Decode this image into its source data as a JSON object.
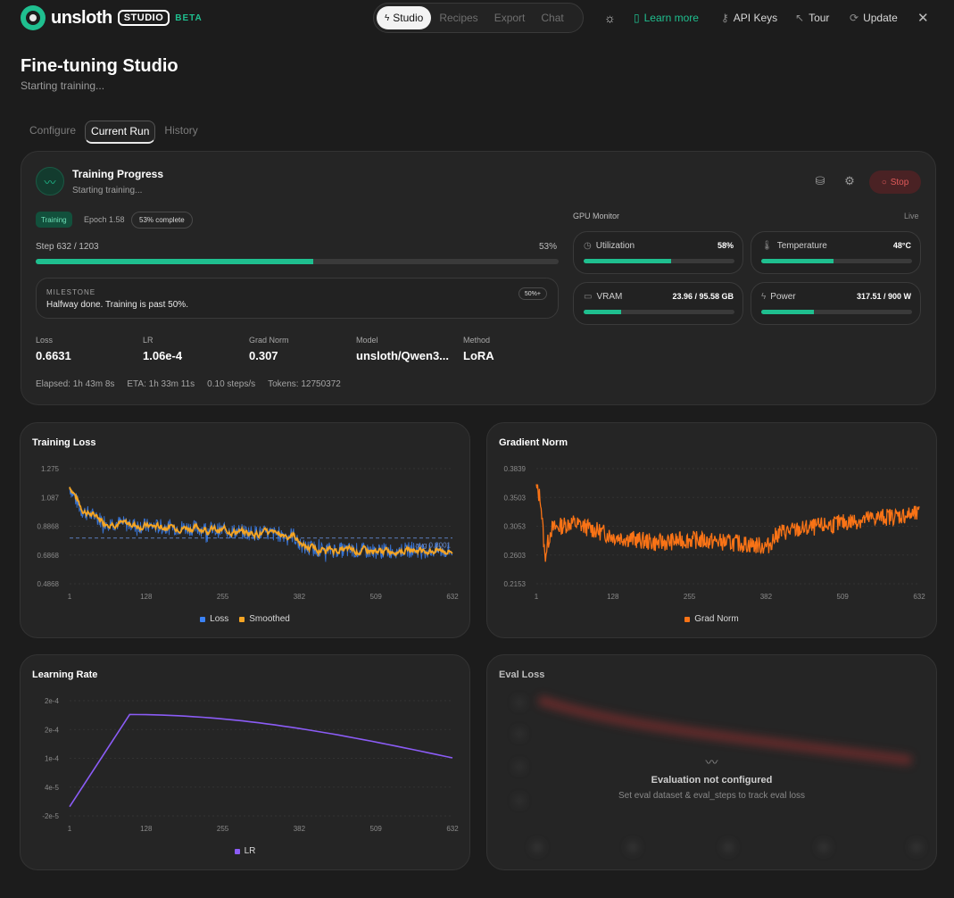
{
  "app": {
    "logo_text": "unsloth",
    "logo_badge": "STUDIO",
    "logo_beta": "BETA"
  },
  "nav": {
    "tabs": [
      {
        "label": "Studio",
        "active": true
      },
      {
        "label": "Recipes",
        "active": false
      },
      {
        "label": "Export",
        "active": false
      },
      {
        "label": "Chat",
        "active": false
      }
    ]
  },
  "toolbar": {
    "learn_more": "Learn more",
    "api_keys": "API Keys",
    "tour": "Tour",
    "update": "Update"
  },
  "page": {
    "title": "Fine-tuning Studio",
    "subtitle": "Starting training..."
  },
  "subtabs": [
    {
      "label": "Configure",
      "active": false
    },
    {
      "label": "Current Run",
      "active": true
    },
    {
      "label": "History",
      "active": false
    }
  ],
  "progress": {
    "title": "Training Progress",
    "subtitle": "Starting training...",
    "stop_label": "Stop",
    "status_badge": "Training",
    "epoch": "Epoch 1.58",
    "complete_badge": "53% complete",
    "step_label": "Step 632 / 1203",
    "step_pct_text": "53%",
    "step_fraction": 0.53,
    "milestone_label": "MILESTONE",
    "milestone_text": "Halfway done. Training is past 50%.",
    "milestone_badge": "50%+",
    "stats": [
      {
        "label": "Loss",
        "value": "0.6631"
      },
      {
        "label": "LR",
        "value": "1.06e-4"
      },
      {
        "label": "Grad Norm",
        "value": "0.307"
      },
      {
        "label": "Model",
        "value": "unsloth/Qwen3..."
      },
      {
        "label": "Method",
        "value": "LoRA"
      }
    ],
    "elapsed": "Elapsed: 1h 43m 8s",
    "eta": "ETA: 1h 33m 11s",
    "speed": "0.10 steps/s",
    "tokens": "Tokens: 12750372"
  },
  "gpu": {
    "title": "GPU Monitor",
    "live": "Live",
    "cards": [
      {
        "name": "Utilization",
        "icon": "gauge-icon",
        "value": "58%",
        "fraction": 0.58
      },
      {
        "name": "Temperature",
        "icon": "thermometer-icon",
        "value": "48°C",
        "fraction": 0.48
      },
      {
        "name": "VRAM",
        "icon": "memory-icon",
        "value": "23.96 / 95.58 GB",
        "fraction": 0.25
      },
      {
        "name": "Power",
        "icon": "bolt-icon",
        "value": "317.51 / 900 W",
        "fraction": 0.35
      }
    ]
  },
  "charts": {
    "loss_title": "Training Loss",
    "grad_title": "Gradient Norm",
    "lr_title": "Learning Rate",
    "eval_title": "Eval Loss",
    "eval_empty_title": "Evaluation not configured",
    "eval_empty_sub": "Set eval dataset & eval_steps to track eval loss"
  },
  "chart_data": [
    {
      "type": "line",
      "title": "Training Loss",
      "x_ticks": [
        "1",
        "128",
        "255",
        "382",
        "509",
        "632"
      ],
      "y_ticks": [
        "1.275",
        "1.087",
        "0.8868",
        "0.6868",
        "0.4868"
      ],
      "ylim": [
        0.4868,
        1.275
      ],
      "xlim": [
        1,
        632
      ],
      "series": [
        {
          "name": "Loss",
          "color": "#3b82f6"
        },
        {
          "name": "Smoothed",
          "color": "#f5a524"
        }
      ],
      "avg_label": "avg 0.8001",
      "avg_value": 0.8001,
      "anchors": [
        [
          1,
          1.15
        ],
        [
          20,
          0.99
        ],
        [
          60,
          0.91
        ],
        [
          128,
          0.88
        ],
        [
          200,
          0.87
        ],
        [
          255,
          0.85
        ],
        [
          330,
          0.83
        ],
        [
          370,
          0.82
        ],
        [
          382,
          0.74
        ],
        [
          420,
          0.72
        ],
        [
          509,
          0.71
        ],
        [
          560,
          0.72
        ],
        [
          632,
          0.71
        ]
      ],
      "grid": true,
      "legend": "bottom"
    },
    {
      "type": "line",
      "title": "Gradient Norm",
      "x_ticks": [
        "1",
        "128",
        "255",
        "382",
        "509",
        "632"
      ],
      "y_ticks": [
        "0.3839",
        "0.3503",
        "0.3053",
        "0.2603",
        "0.2153"
      ],
      "ylim": [
        0.2153,
        0.3839
      ],
      "xlim": [
        1,
        632
      ],
      "series": [
        {
          "name": "Grad Norm",
          "color": "#f97316"
        }
      ],
      "anchors": [
        [
          1,
          0.355
        ],
        [
          8,
          0.34
        ],
        [
          15,
          0.255
        ],
        [
          25,
          0.295
        ],
        [
          60,
          0.305
        ],
        [
          128,
          0.285
        ],
        [
          200,
          0.275
        ],
        [
          255,
          0.28
        ],
        [
          330,
          0.275
        ],
        [
          382,
          0.27
        ],
        [
          400,
          0.29
        ],
        [
          460,
          0.298
        ],
        [
          509,
          0.305
        ],
        [
          560,
          0.312
        ],
        [
          632,
          0.317
        ]
      ],
      "grid": true,
      "legend": "bottom"
    },
    {
      "type": "line",
      "title": "Learning Rate",
      "x_ticks": [
        "1",
        "128",
        "255",
        "382",
        "509",
        "632"
      ],
      "y_ticks": [
        "2e-4",
        "2e-4",
        "1e-4",
        "4e-5",
        "-2e-5"
      ],
      "ylim": [
        -2e-05,
        0.00023
      ],
      "xlim": [
        1,
        632
      ],
      "series": [
        {
          "name": "LR",
          "color": "#8b5cf6"
        }
      ],
      "points": [
        [
          1,
          0.0
        ],
        [
          100,
          0.0002
        ],
        [
          632,
          0.000106
        ]
      ],
      "grid": true,
      "legend": "bottom"
    }
  ]
}
